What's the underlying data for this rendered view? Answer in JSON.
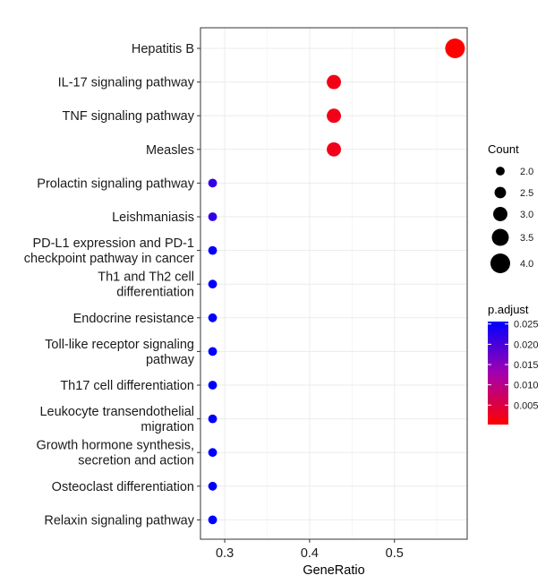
{
  "chart_data": {
    "type": "scatter",
    "xlabel": "GeneRatio",
    "x_ticks": [
      0.3,
      0.4,
      0.5
    ],
    "xlim": [
      0.2714,
      0.5857
    ],
    "grid": true,
    "legend_position": "right",
    "points": [
      {
        "term": [
          "Hepatitis B"
        ],
        "gene_ratio": 0.5714,
        "count": 4,
        "p_adjust": 0.0002
      },
      {
        "term": [
          "IL-17 signaling pathway"
        ],
        "gene_ratio": 0.4286,
        "count": 3,
        "p_adjust": 0.0018
      },
      {
        "term": [
          "TNF signaling pathway"
        ],
        "gene_ratio": 0.4286,
        "count": 3,
        "p_adjust": 0.0019
      },
      {
        "term": [
          "Measles"
        ],
        "gene_ratio": 0.4286,
        "count": 3,
        "p_adjust": 0.002
      },
      {
        "term": [
          "Prolactin signaling pathway"
        ],
        "gene_ratio": 0.2857,
        "count": 2,
        "p_adjust": 0.0215
      },
      {
        "term": [
          "Leishmaniasis"
        ],
        "gene_ratio": 0.2857,
        "count": 2,
        "p_adjust": 0.0218
      },
      {
        "term": [
          "PD-L1 expression and PD-1",
          "checkpoint pathway in cancer"
        ],
        "gene_ratio": 0.2857,
        "count": 2,
        "p_adjust": 0.0252
      },
      {
        "term": [
          "Th1 and Th2 cell",
          "differentiation"
        ],
        "gene_ratio": 0.2857,
        "count": 2,
        "p_adjust": 0.0252
      },
      {
        "term": [
          "Endocrine resistance"
        ],
        "gene_ratio": 0.2857,
        "count": 2,
        "p_adjust": 0.0253
      },
      {
        "term": [
          "Toll-like receptor signaling",
          "pathway"
        ],
        "gene_ratio": 0.2857,
        "count": 2,
        "p_adjust": 0.0253
      },
      {
        "term": [
          "Th17 cell differentiation"
        ],
        "gene_ratio": 0.2857,
        "count": 2,
        "p_adjust": 0.0254
      },
      {
        "term": [
          "Leukocyte transendothelial",
          "migration"
        ],
        "gene_ratio": 0.2857,
        "count": 2,
        "p_adjust": 0.0254
      },
      {
        "term": [
          "Growth hormone synthesis,",
          "secretion and action"
        ],
        "gene_ratio": 0.2857,
        "count": 2,
        "p_adjust": 0.0255
      },
      {
        "term": [
          "Osteoclast differentiation"
        ],
        "gene_ratio": 0.2857,
        "count": 2,
        "p_adjust": 0.0255
      },
      {
        "term": [
          "Relaxin signaling pathway"
        ],
        "gene_ratio": 0.2857,
        "count": 2,
        "p_adjust": 0.0256
      }
    ],
    "legend_size": {
      "title": "Count",
      "values": [
        2.0,
        2.5,
        3.0,
        3.5,
        4.0
      ],
      "labels": [
        "2.0",
        "2.5",
        "3.0",
        "3.5",
        "4.0"
      ]
    },
    "legend_color": {
      "title": "p.adjust",
      "values": [
        0.025,
        0.02,
        0.015,
        0.01,
        0.005
      ],
      "labels": [
        "0.025",
        "0.020",
        "0.015",
        "0.010",
        "0.005"
      ],
      "range": [
        0.0002,
        0.0256
      ],
      "low_color": "#ff0000",
      "high_color": "#0000ff"
    }
  }
}
